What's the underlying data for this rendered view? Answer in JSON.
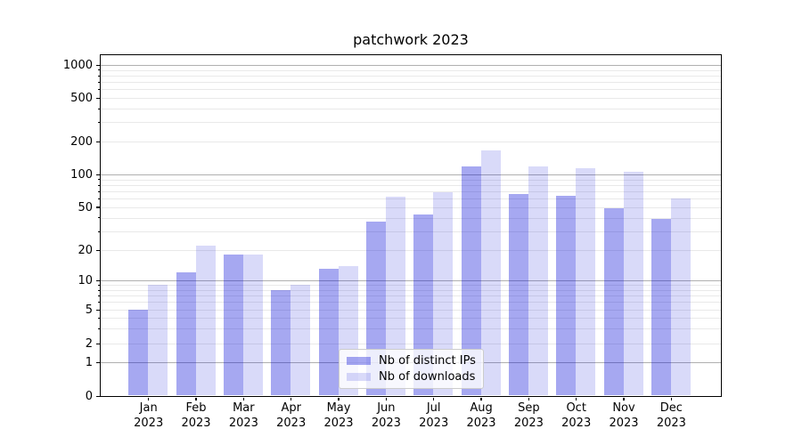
{
  "title": "patchwork 2023",
  "colors": {
    "bar_distinct_ips_fill": "rgba(0,5,215,0.35)",
    "bar_downloads_fill": "rgba(0,5,215,0.15)",
    "bar_distinct_ips_on_white": "#a6a8f1",
    "bar_downloads_on_white": "#dadaf9",
    "grid_major": "#b0b0b0",
    "grid_minor": "#e9e9e9",
    "spine": "#000000",
    "text": "#000000",
    "legend_border": "#cccccc"
  },
  "legend": {
    "items": [
      {
        "label": "Nb of distinct IPs"
      },
      {
        "label": "Nb of downloads"
      }
    ]
  },
  "chart_data": {
    "type": "bar",
    "title": "patchwork 2023",
    "categories": [
      "Jan",
      "Feb",
      "Mar",
      "Apr",
      "May",
      "Jun",
      "Jul",
      "Aug",
      "Sep",
      "Oct",
      "Nov",
      "Dec"
    ],
    "category_year": "2023",
    "series": [
      {
        "name": "Nb of distinct IPs",
        "color": "rgba(0,5,215,0.35)",
        "values": [
          5,
          12,
          18,
          8,
          13,
          37,
          43,
          118,
          66,
          63,
          49,
          39
        ]
      },
      {
        "name": "Nb of downloads",
        "color": "rgba(0,5,215,0.15)",
        "values": [
          9,
          22,
          18,
          9,
          14,
          62,
          68,
          165,
          118,
          114,
          105,
          60
        ]
      }
    ],
    "xlabel": "",
    "ylabel": "",
    "yscale": "symlog (linear 0-1, compressed log 1-10, log above 10)",
    "yticks": [
      0,
      1,
      2,
      5,
      10,
      20,
      50,
      100,
      200,
      500,
      1000
    ],
    "ytick_labels": [
      "0",
      "1",
      "2",
      "5",
      "10",
      "20",
      "50",
      "100",
      "200",
      "500",
      "1000"
    ],
    "ylim": [
      0,
      1260
    ],
    "grid": true,
    "legend_position": "lower center"
  }
}
